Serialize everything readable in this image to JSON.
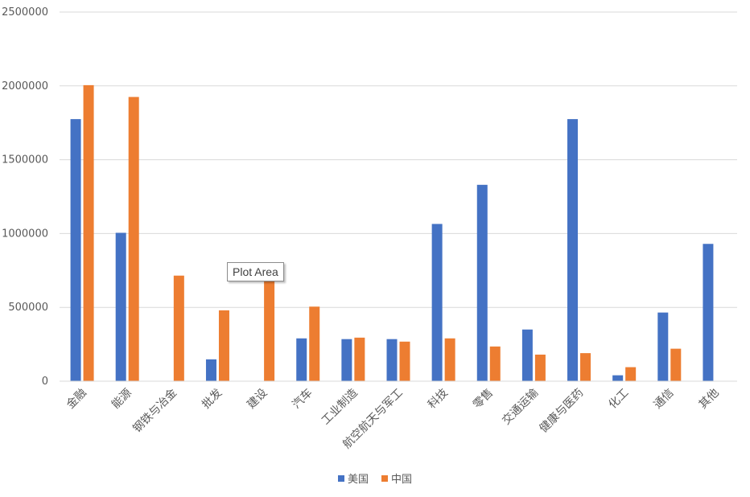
{
  "chart_data": {
    "type": "bar",
    "categories": [
      "金融",
      "能源",
      "钢铁与冶金",
      "批发",
      "建设",
      "汽车",
      "工业制造",
      "航空航天与军工",
      "科技",
      "零售",
      "交通运输",
      "健康与医药",
      "化工",
      "通信",
      "其他"
    ],
    "series": [
      {
        "name": "美国",
        "color": "#4472C4",
        "values": [
          1775000,
          1005000,
          0,
          148000,
          0,
          290000,
          285000,
          285000,
          1065000,
          1330000,
          350000,
          1775000,
          40000,
          465000,
          930000
        ]
      },
      {
        "name": "中国",
        "color": "#ED7D31",
        "values": [
          2005000,
          1925000,
          715000,
          480000,
          690000,
          505000,
          295000,
          268000,
          290000,
          235000,
          180000,
          190000,
          95000,
          220000,
          0
        ]
      }
    ],
    "ylim": [
      0,
      2500000
    ],
    "yticks": [
      "0",
      "500000",
      "1000000",
      "1500000",
      "2000000",
      "2500000"
    ],
    "grid": true,
    "legend_position": "bottom"
  },
  "tooltip": {
    "text": "Plot Area"
  }
}
